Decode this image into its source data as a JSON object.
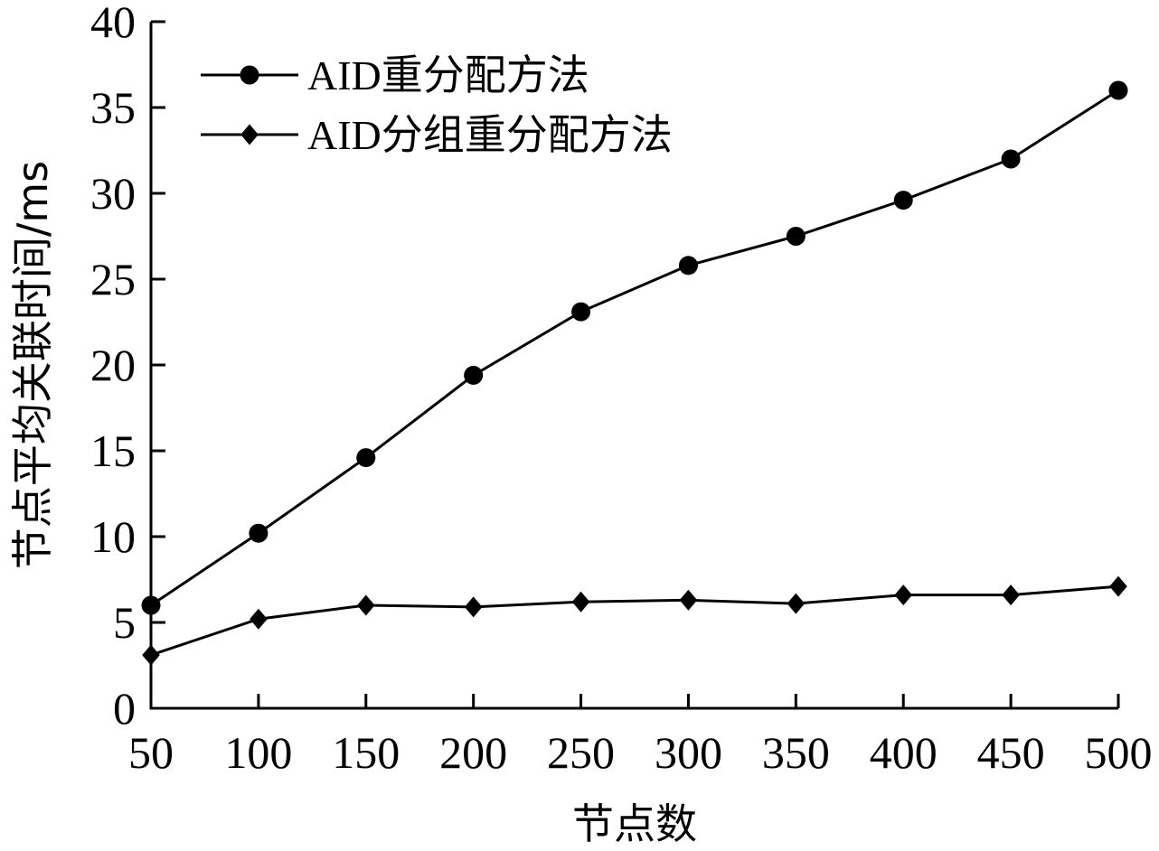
{
  "chart_data": {
    "type": "line",
    "title": "",
    "xlabel": "节点数",
    "ylabel": "节点平均关联时间/ms",
    "x": [
      50,
      100,
      150,
      200,
      250,
      300,
      350,
      400,
      450,
      500
    ],
    "xlim": [
      50,
      500
    ],
    "ylim": [
      0,
      40
    ],
    "yticks": [
      0,
      5,
      10,
      15,
      20,
      25,
      30,
      35,
      40
    ],
    "grid": false,
    "legend_position": "top-left",
    "series": [
      {
        "name": "AID重分配方法",
        "marker": "circle",
        "color": "#000000",
        "values": [
          6.0,
          10.2,
          14.6,
          19.4,
          23.1,
          25.8,
          27.5,
          29.6,
          32.0,
          36.0
        ]
      },
      {
        "name": "AID分组重分配方法",
        "marker": "diamond",
        "color": "#000000",
        "values": [
          3.1,
          5.2,
          6.0,
          5.9,
          6.2,
          6.3,
          6.1,
          6.6,
          6.6,
          7.1
        ]
      }
    ]
  }
}
